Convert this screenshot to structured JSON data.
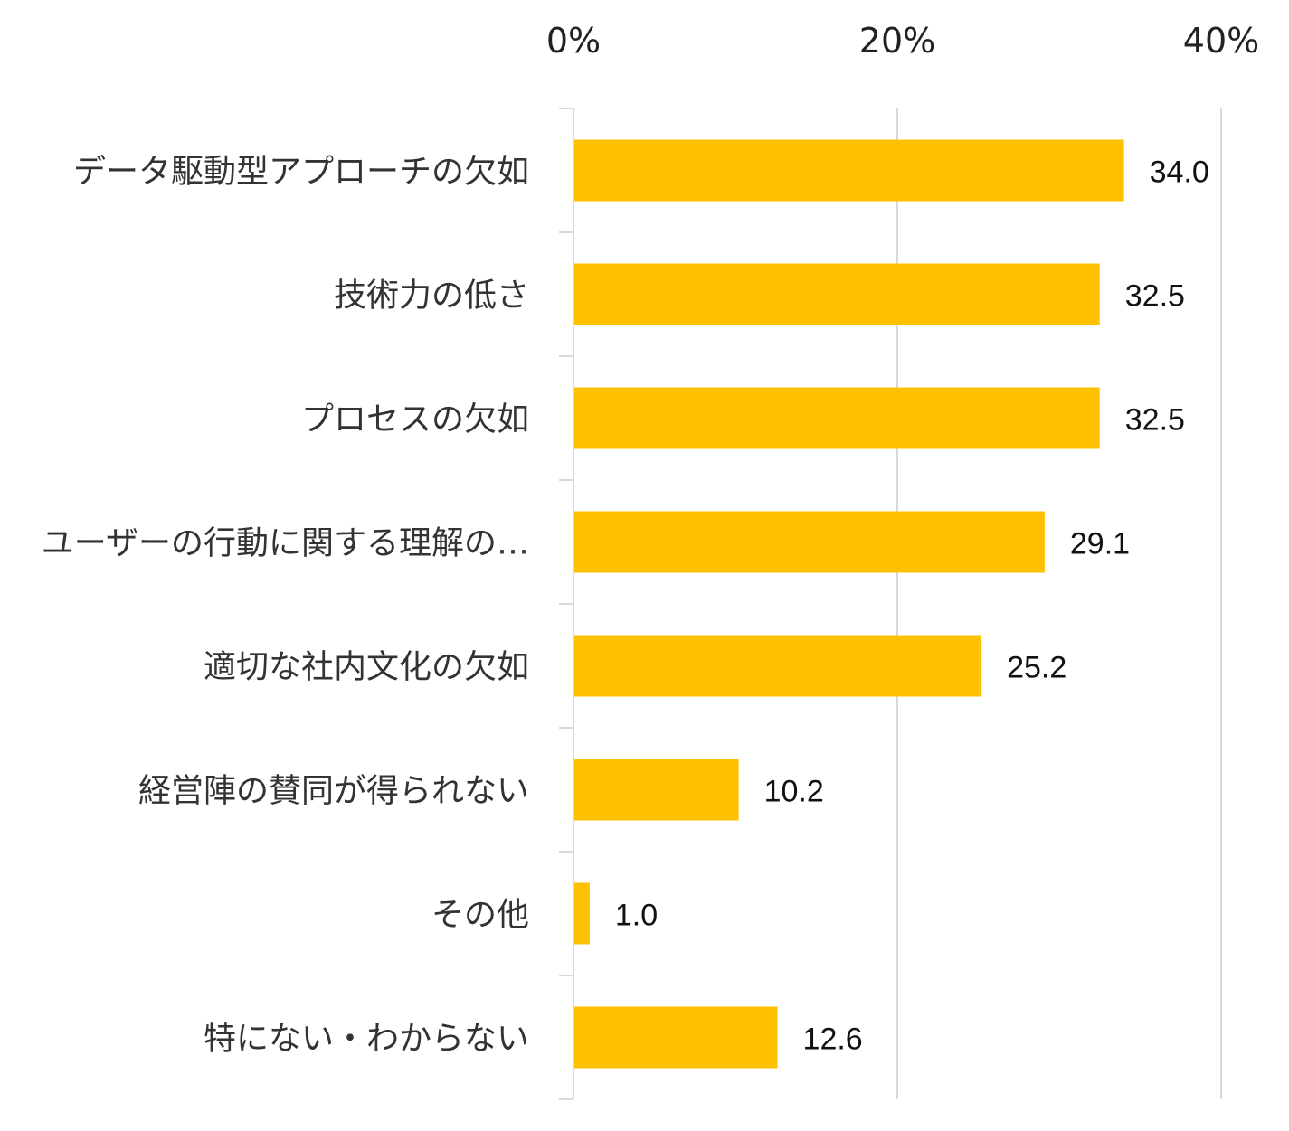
{
  "chart_data": {
    "type": "bar",
    "orientation": "horizontal",
    "categories": [
      "データ駆動型アプローチの欠如",
      "技術力の低さ",
      "プロセスの欠如",
      "ユーザーの行動に関する理解の…",
      "適切な社内文化の欠如",
      "経営陣の賛同が得られない",
      "その他",
      "特にない・わからない"
    ],
    "values": [
      34.0,
      32.5,
      32.5,
      29.1,
      25.2,
      10.2,
      1.0,
      12.6
    ],
    "value_labels": [
      "34.0",
      "32.5",
      "32.5",
      "29.1",
      "25.2",
      "10.2",
      "1.0",
      "12.6"
    ],
    "xlim": [
      0,
      40
    ],
    "x_ticks": [
      0,
      20,
      40
    ],
    "x_tick_labels": [
      "0%",
      "20%",
      "40%"
    ],
    "x_axis_position": "top",
    "grid": true,
    "bar_color": "#FFC000",
    "grid_color": "#D9D9D9",
    "title": "",
    "xlabel": "",
    "ylabel": ""
  }
}
